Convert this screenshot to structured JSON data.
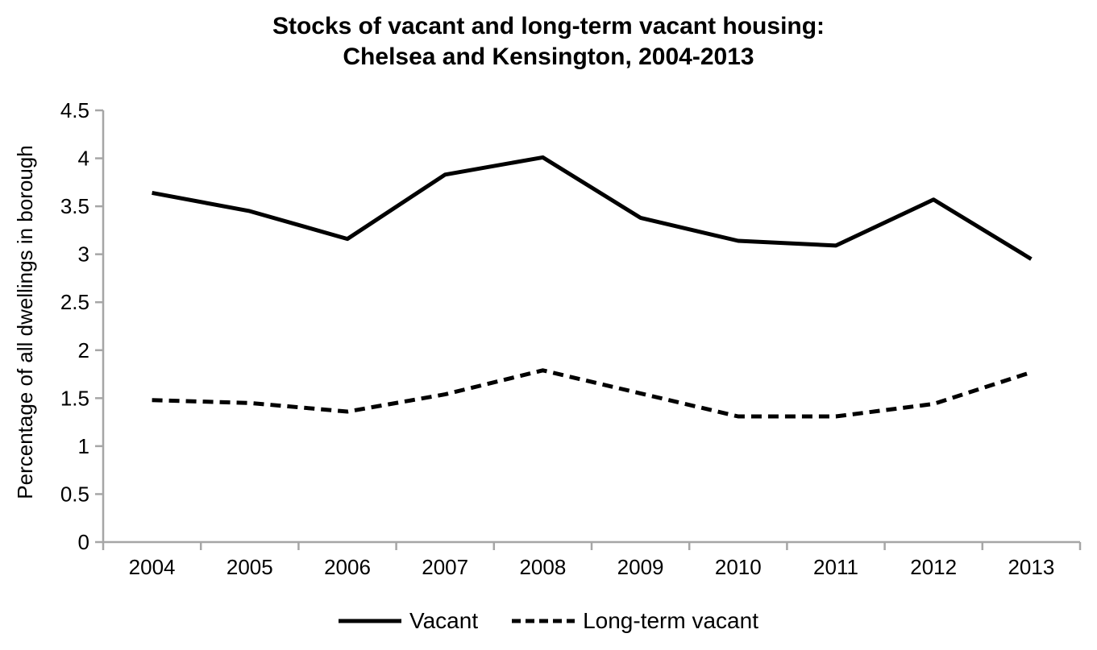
{
  "page": {
    "background_color": "#ffffff",
    "text_color": "#000000",
    "axis_color": "#a6a6a6"
  },
  "chart_data": {
    "type": "line",
    "title": "Stocks of vacant and long-term vacant housing: Chelsea and Kensington, 2004-2013",
    "title_lines": [
      "Stocks of vacant and long-term vacant housing:",
      "Chelsea and Kensington, 2004-2013"
    ],
    "xlabel": "",
    "ylabel": "Percentage of all dwellings in borough",
    "categories": [
      "2004",
      "2005",
      "2006",
      "2007",
      "2008",
      "2009",
      "2010",
      "2011",
      "2012",
      "2013"
    ],
    "series": [
      {
        "name": "Vacant",
        "line_style": "solid",
        "color": "#000000",
        "values": [
          3.64,
          3.45,
          3.16,
          3.83,
          4.01,
          3.38,
          3.14,
          3.09,
          3.57,
          2.95
        ]
      },
      {
        "name": "Long-term vacant",
        "line_style": "dashed",
        "color": "#000000",
        "values": [
          1.48,
          1.45,
          1.36,
          1.54,
          1.79,
          1.55,
          1.31,
          1.31,
          1.44,
          1.77
        ]
      }
    ],
    "ylim": [
      0,
      4.5
    ],
    "yticks": [
      0,
      0.5,
      1,
      1.5,
      2,
      2.5,
      3,
      3.5,
      4,
      4.5
    ],
    "grid": false,
    "legend_position": "bottom",
    "axis_color": "#a6a6a6",
    "line_width": 5
  }
}
